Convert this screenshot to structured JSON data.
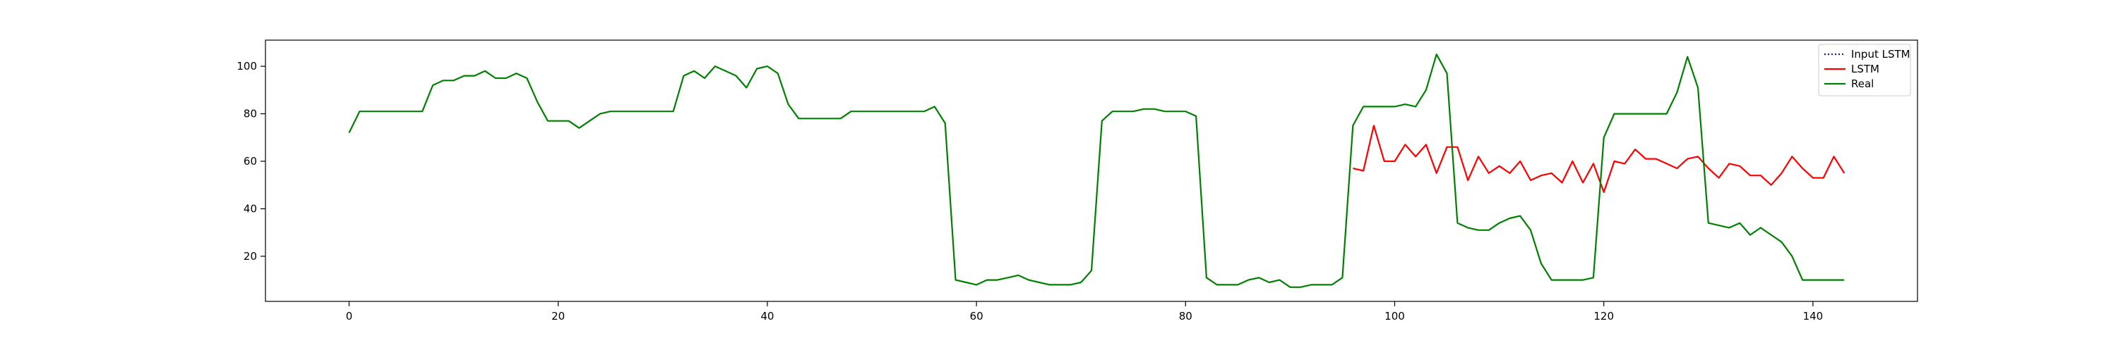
{
  "chart_data": {
    "type": "line",
    "title": "",
    "xlabel": "",
    "ylabel": "",
    "xlim": [
      -8,
      150
    ],
    "ylim": [
      1,
      111
    ],
    "x_ticks": [
      0,
      20,
      40,
      60,
      80,
      100,
      120,
      140
    ],
    "y_ticks": [
      20,
      40,
      60,
      80,
      100
    ],
    "grid": false,
    "legend_position": "top-right",
    "series": [
      {
        "name": "Input LSTM",
        "color": "#1f1f8f",
        "style": "dotted",
        "x": [],
        "values": []
      },
      {
        "name": "LSTM",
        "color": "#ff0000",
        "style": "solid",
        "x": [
          96,
          97,
          98,
          99,
          100,
          101,
          102,
          103,
          104,
          105,
          106,
          107,
          108,
          109,
          110,
          111,
          112,
          113,
          114,
          115,
          116,
          117,
          118,
          119,
          120,
          121,
          122,
          123,
          124,
          125,
          126,
          127,
          128,
          129,
          130,
          131,
          132,
          133,
          134,
          135,
          136,
          137,
          138,
          139,
          140,
          141,
          142,
          143
        ],
        "values": [
          57,
          56,
          75,
          60,
          60,
          67,
          62,
          67,
          55,
          66,
          66,
          52,
          62,
          55,
          58,
          55,
          60,
          52,
          54,
          55,
          51,
          60,
          51,
          59,
          47,
          60,
          59,
          65,
          61,
          61,
          59,
          57,
          61,
          62,
          57,
          53,
          59,
          58,
          54,
          54,
          50,
          55,
          62,
          57,
          53,
          53,
          62,
          55
        ]
      },
      {
        "name": "Real",
        "color": "#008000",
        "style": "solid",
        "x": [
          0,
          1,
          2,
          3,
          4,
          5,
          6,
          7,
          8,
          9,
          10,
          11,
          12,
          13,
          14,
          15,
          16,
          17,
          18,
          19,
          20,
          21,
          22,
          23,
          24,
          25,
          26,
          27,
          28,
          29,
          30,
          31,
          32,
          33,
          34,
          35,
          36,
          37,
          38,
          39,
          40,
          41,
          42,
          43,
          44,
          45,
          46,
          47,
          48,
          49,
          50,
          51,
          52,
          53,
          54,
          55,
          56,
          57,
          58,
          59,
          60,
          61,
          62,
          63,
          64,
          65,
          66,
          67,
          68,
          69,
          70,
          71,
          72,
          73,
          74,
          75,
          76,
          77,
          78,
          79,
          80,
          81,
          82,
          83,
          84,
          85,
          86,
          87,
          88,
          89,
          90,
          91,
          92,
          93,
          94,
          95,
          96,
          97,
          98,
          99,
          100,
          101,
          102,
          103,
          104,
          105,
          106,
          107,
          108,
          109,
          110,
          111,
          112,
          113,
          114,
          115,
          116,
          117,
          118,
          119,
          120,
          121,
          122,
          123,
          124,
          125,
          126,
          127,
          128,
          129,
          130,
          131,
          132,
          133,
          134,
          135,
          136,
          137,
          138,
          139,
          140,
          141,
          142,
          143
        ],
        "values": [
          72,
          81,
          81,
          81,
          81,
          81,
          81,
          81,
          92,
          94,
          94,
          96,
          96,
          98,
          95,
          95,
          97,
          95,
          85,
          77,
          77,
          77,
          74,
          77,
          80,
          81,
          81,
          81,
          81,
          81,
          81,
          81,
          96,
          98,
          95,
          100,
          98,
          96,
          91,
          99,
          100,
          97,
          84,
          78,
          78,
          78,
          78,
          78,
          81,
          81,
          81,
          81,
          81,
          81,
          81,
          81,
          83,
          76,
          10,
          9,
          8,
          10,
          10,
          11,
          12,
          10,
          9,
          8,
          8,
          8,
          9,
          14,
          77,
          81,
          81,
          81,
          82,
          82,
          81,
          81,
          81,
          79,
          11,
          8,
          8,
          8,
          10,
          11,
          9,
          10,
          7,
          7,
          8,
          8,
          8,
          11,
          75,
          83,
          83,
          83,
          83,
          84,
          83,
          90,
          105,
          97,
          34,
          32,
          31,
          31,
          34,
          36,
          37,
          31,
          17,
          10,
          10,
          10,
          10,
          11,
          70,
          80,
          80,
          80,
          80,
          80,
          80,
          89,
          104,
          91,
          34,
          33,
          32,
          34,
          29,
          32,
          29,
          26,
          20,
          10,
          10,
          10,
          10,
          10
        ]
      }
    ]
  }
}
